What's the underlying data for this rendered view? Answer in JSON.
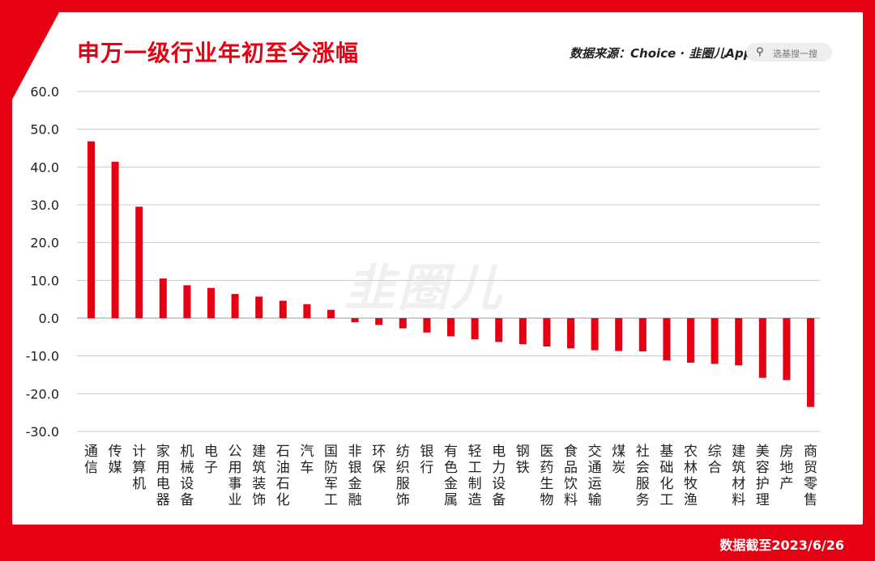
{
  "header": {
    "title": "申万一级行业年初至今涨幅",
    "source": "数据来源：Choice · 韭圈儿App",
    "search_placeholder": "选基搜一搜"
  },
  "watermark": "韭圈儿",
  "footer": {
    "date_note": "数据截至2023/6/26"
  },
  "colors": {
    "brand": "#e60012",
    "bar": "#e60012",
    "grid": "#cccccc"
  },
  "chart_data": {
    "type": "bar",
    "categories": [
      "通信",
      "传媒",
      "计算机",
      "家用电器",
      "机械设备",
      "电子",
      "公用事业",
      "建筑装饰",
      "石油石化",
      "汽车",
      "国防军工",
      "非银金融",
      "环保",
      "纺织服饰",
      "银行",
      "有色金属",
      "轻工制造",
      "电力设备",
      "钢铁",
      "医药生物",
      "食品饮料",
      "交通运输",
      "煤炭",
      "社会服务",
      "基础化工",
      "农林牧渔",
      "综合",
      "建筑材料",
      "美容护理",
      "房地产",
      "商贸零售"
    ],
    "values": [
      46.8,
      41.4,
      29.5,
      10.5,
      8.7,
      8.0,
      6.4,
      5.7,
      4.6,
      3.7,
      2.2,
      -1.1,
      -1.8,
      -2.7,
      -3.8,
      -4.8,
      -5.6,
      -6.3,
      -6.9,
      -7.5,
      -8.0,
      -8.5,
      -8.7,
      -8.8,
      -11.2,
      -11.8,
      -12.1,
      -12.5,
      -15.8,
      -16.4,
      -23.5
    ],
    "title": "",
    "xlabel": "",
    "ylabel": "",
    "ylim": [
      -30,
      60
    ],
    "yticks": [
      "60.0",
      "50.0",
      "40.0",
      "30.0",
      "20.0",
      "10.0",
      "0.0",
      "-10.0",
      "-20.0",
      "-30.0"
    ],
    "grid": true,
    "legend": "none"
  }
}
